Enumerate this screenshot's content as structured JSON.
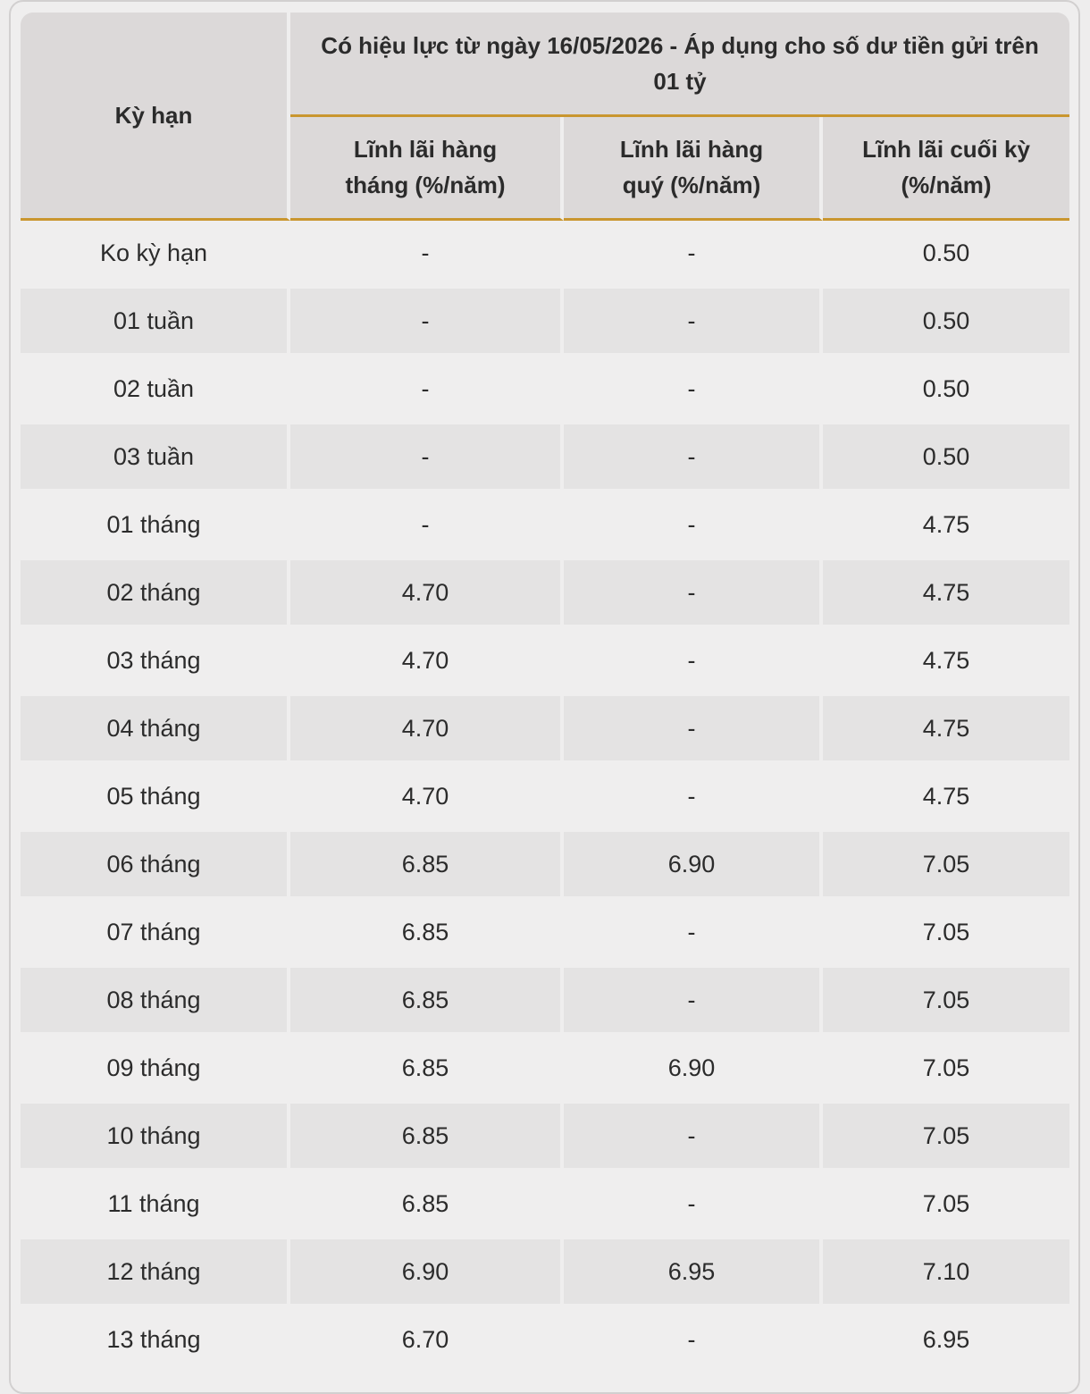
{
  "header": {
    "term_label": "Kỳ hạn",
    "group_title": "Có hiệu lực từ ngày 16/05/2026 - Áp dụng cho số dư tiền gửi trên 01 tỷ",
    "col_monthly": "Lĩnh lãi hàng tháng (%/năm)",
    "col_quarterly": "Lĩnh lãi hàng quý (%/năm)",
    "col_end": "Lĩnh lãi cuối kỳ (%/năm)"
  },
  "rows": [
    {
      "term": "Ko kỳ hạn",
      "monthly": "-",
      "quarterly": "-",
      "end": "0.50"
    },
    {
      "term": "01 tuần",
      "monthly": "-",
      "quarterly": "-",
      "end": "0.50"
    },
    {
      "term": "02 tuần",
      "monthly": "-",
      "quarterly": "-",
      "end": "0.50"
    },
    {
      "term": "03 tuần",
      "monthly": "-",
      "quarterly": "-",
      "end": "0.50"
    },
    {
      "term": "01 tháng",
      "monthly": "-",
      "quarterly": "-",
      "end": "4.75"
    },
    {
      "term": "02 tháng",
      "monthly": "4.70",
      "quarterly": "-",
      "end": "4.75"
    },
    {
      "term": "03 tháng",
      "monthly": "4.70",
      "quarterly": "-",
      "end": "4.75"
    },
    {
      "term": "04 tháng",
      "monthly": "4.70",
      "quarterly": "-",
      "end": "4.75"
    },
    {
      "term": "05 tháng",
      "monthly": "4.70",
      "quarterly": "-",
      "end": "4.75"
    },
    {
      "term": "06 tháng",
      "monthly": "6.85",
      "quarterly": "6.90",
      "end": "7.05"
    },
    {
      "term": "07 tháng",
      "monthly": "6.85",
      "quarterly": "-",
      "end": "7.05"
    },
    {
      "term": "08 tháng",
      "monthly": "6.85",
      "quarterly": "-",
      "end": "7.05"
    },
    {
      "term": "09 tháng",
      "monthly": "6.85",
      "quarterly": "6.90",
      "end": "7.05"
    },
    {
      "term": "10 tháng",
      "monthly": "6.85",
      "quarterly": "-",
      "end": "7.05"
    },
    {
      "term": "11 tháng",
      "monthly": "6.85",
      "quarterly": "-",
      "end": "7.05"
    },
    {
      "term": "12 tháng",
      "monthly": "6.90",
      "quarterly": "6.95",
      "end": "7.10"
    },
    {
      "term": "13 tháng",
      "monthly": "6.70",
      "quarterly": "-",
      "end": "6.95"
    }
  ],
  "colors": {
    "accent_line": "#c9962f",
    "header_bg": "#dcd9d9",
    "row_alt_bg": "#e4e3e3",
    "row_bg": "#efeeee"
  }
}
